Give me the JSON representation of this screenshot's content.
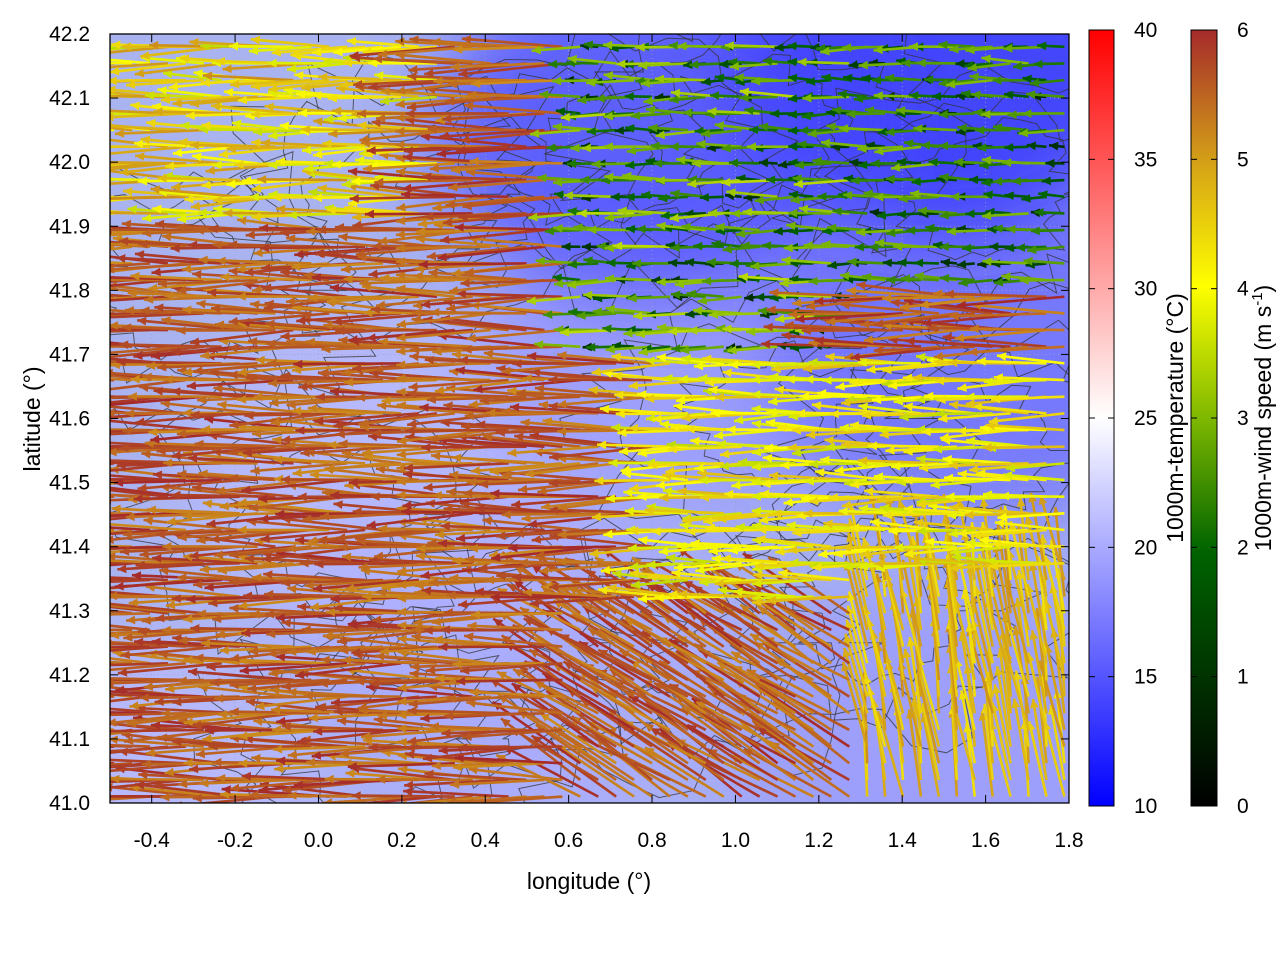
{
  "chart_data": {
    "type": "heatmap",
    "subtype": "wind-vector-field-over-temperature-map-with-contours",
    "xlabel": "longitude (°)",
    "ylabel": "latitude (°)",
    "xlim": [
      -0.5,
      1.8
    ],
    "ylim": [
      41.0,
      42.2
    ],
    "xticks": [
      "-0.4",
      "-0.2",
      "0.0",
      "0.2",
      "0.4",
      "0.6",
      "0.8",
      "1.0",
      "1.2",
      "1.4",
      "1.6",
      "1.8"
    ],
    "yticks": [
      "41.0",
      "41.1",
      "41.2",
      "41.3",
      "41.4",
      "41.5",
      "41.6",
      "41.7",
      "41.8",
      "41.9",
      "42.0",
      "42.1",
      "42.2"
    ],
    "grid": true,
    "temperature_colorbar": {
      "label": "1000m-temperature (°C)",
      "range": [
        10,
        40
      ],
      "ticks": [
        "10",
        "15",
        "20",
        "25",
        "30",
        "35",
        "40"
      ],
      "colors": [
        "#0000ff",
        "#ffffff",
        "#ff0000"
      ]
    },
    "wind_colorbar": {
      "label_main": "1000m-wind speed (m s",
      "label_sup": "-1",
      "label_end": ")",
      "range": [
        0,
        6
      ],
      "ticks": [
        "0",
        "1",
        "2",
        "3",
        "4",
        "5",
        "6"
      ],
      "colors": [
        "#000000",
        "#006400",
        "#7fb800",
        "#ffff00",
        "#d4a017",
        "#a52a2a"
      ]
    },
    "temperature_field_regions": [
      {
        "lon": -0.5,
        "lat": 41.0,
        "temp": 21
      },
      {
        "lon": 0.2,
        "lat": 41.5,
        "temp": 21
      },
      {
        "lon": 0.5,
        "lat": 41.2,
        "temp": 20
      },
      {
        "lon": 0.9,
        "lat": 41.7,
        "temp": 19
      },
      {
        "lon": 1.6,
        "lat": 41.7,
        "temp": 16
      },
      {
        "lon": 1.5,
        "lat": 42.15,
        "temp": 12
      },
      {
        "lon": 0.8,
        "lat": 42.05,
        "temp": 14
      },
      {
        "lon": 1.5,
        "lat": 41.1,
        "temp": 19
      }
    ],
    "wind_field_summary": [
      {
        "region": "west/southwest",
        "lon_range": [
          -0.5,
          0.6
        ],
        "lat_range": [
          41.0,
          41.9
        ],
        "direction": "west",
        "speed_range": [
          5,
          6
        ]
      },
      {
        "region": "northwest corner",
        "lon_range": [
          -0.5,
          0.3
        ],
        "lat_range": [
          41.9,
          42.2
        ],
        "direction": "west",
        "speed_range": [
          3,
          5
        ]
      },
      {
        "region": "north-central",
        "lon_range": [
          0.6,
          1.3
        ],
        "lat_range": [
          41.7,
          42.2
        ],
        "direction": "west",
        "speed_range": [
          0.5,
          3
        ]
      },
      {
        "region": "northeast",
        "lon_range": [
          1.3,
          1.8
        ],
        "lat_range": [
          41.8,
          42.2
        ],
        "direction": "west",
        "speed_range": [
          0.5,
          2.5
        ]
      },
      {
        "region": "east-central",
        "lon_range": [
          0.8,
          1.8
        ],
        "lat_range": [
          41.3,
          41.7
        ],
        "direction": "west",
        "speed_range": [
          3,
          4.5
        ]
      },
      {
        "region": "south-central",
        "lon_range": [
          0.6,
          1.3
        ],
        "lat_range": [
          41.0,
          41.3
        ],
        "direction": "northwest",
        "speed_range": [
          5,
          6
        ]
      },
      {
        "region": "southeast",
        "lon_range": [
          1.3,
          1.8
        ],
        "lat_range": [
          41.0,
          41.35
        ],
        "direction": "north",
        "speed_range": [
          4,
          5
        ]
      }
    ]
  }
}
